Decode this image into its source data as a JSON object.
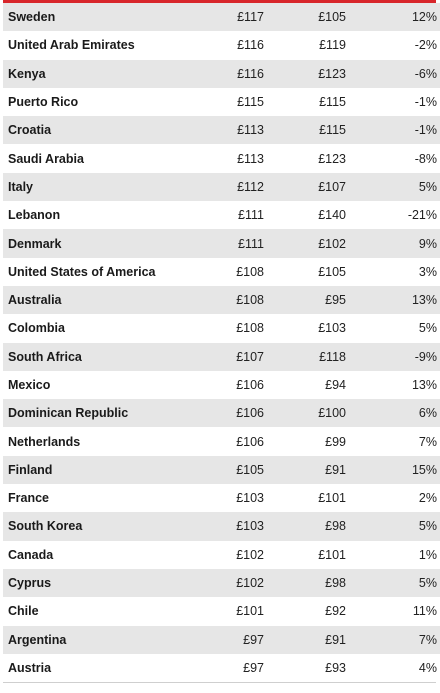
{
  "rows": [
    {
      "country": "Sweden",
      "value1": "£117",
      "value2": "£105",
      "change": "12%"
    },
    {
      "country": "United Arab Emirates",
      "value1": "£116",
      "value2": "£119",
      "change": "-2%"
    },
    {
      "country": "Kenya",
      "value1": "£116",
      "value2": "£123",
      "change": "-6%"
    },
    {
      "country": "Puerto Rico",
      "value1": "£115",
      "value2": "£115",
      "change": "-1%"
    },
    {
      "country": "Croatia",
      "value1": "£113",
      "value2": "£115",
      "change": "-1%"
    },
    {
      "country": "Saudi Arabia",
      "value1": "£113",
      "value2": "£123",
      "change": "-8%"
    },
    {
      "country": "Italy",
      "value1": "£112",
      "value2": "£107",
      "change": "5%"
    },
    {
      "country": "Lebanon",
      "value1": "£111",
      "value2": "£140",
      "change": "-21%"
    },
    {
      "country": "Denmark",
      "value1": "£111",
      "value2": "£102",
      "change": "9%"
    },
    {
      "country": "United States of America",
      "value1": "£108",
      "value2": "£105",
      "change": "3%"
    },
    {
      "country": "Australia",
      "value1": "£108",
      "value2": "£95",
      "change": "13%"
    },
    {
      "country": "Colombia",
      "value1": "£108",
      "value2": "£103",
      "change": "5%"
    },
    {
      "country": "South Africa",
      "value1": "£107",
      "value2": "£118",
      "change": "-9%"
    },
    {
      "country": "Mexico",
      "value1": "£106",
      "value2": "£94",
      "change": "13%"
    },
    {
      "country": "Dominican Republic",
      "value1": "£106",
      "value2": "£100",
      "change": "6%"
    },
    {
      "country": "Netherlands",
      "value1": "£106",
      "value2": "£99",
      "change": "7%"
    },
    {
      "country": "Finland",
      "value1": "£105",
      "value2": "£91",
      "change": "15%"
    },
    {
      "country": "France",
      "value1": "£103",
      "value2": "£101",
      "change": "2%"
    },
    {
      "country": "South Korea",
      "value1": "£103",
      "value2": "£98",
      "change": "5%"
    },
    {
      "country": "Canada",
      "value1": "£102",
      "value2": "£101",
      "change": "1%"
    },
    {
      "country": "Cyprus",
      "value1": "£102",
      "value2": "£98",
      "change": "5%"
    },
    {
      "country": "Chile",
      "value1": "£101",
      "value2": "£92",
      "change": "11%"
    },
    {
      "country": "Argentina",
      "value1": "£97",
      "value2": "£91",
      "change": "7%"
    },
    {
      "country": "Austria",
      "value1": "£97",
      "value2": "£93",
      "change": "4%"
    }
  ],
  "colors": {
    "accent_rule": "#d8262b",
    "stripe": "#e6e6e6",
    "text": "#222222"
  }
}
